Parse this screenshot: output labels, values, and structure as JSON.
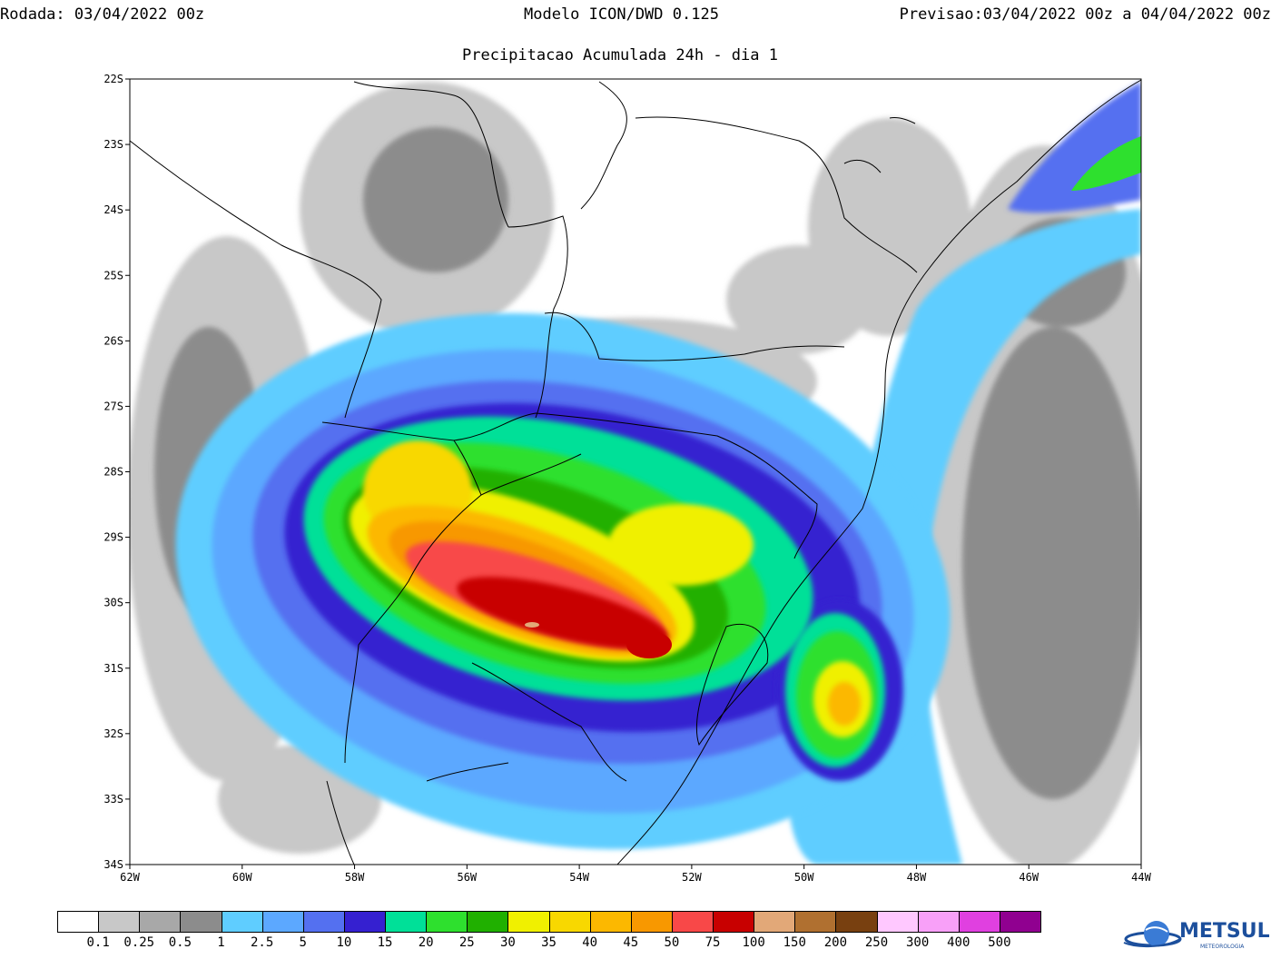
{
  "header": {
    "run": "Rodada: 03/04/2022 00z",
    "model": "Modelo ICON/DWD 0.125",
    "forecast": "Previsao:03/04/2022 00z a 04/04/2022 00z"
  },
  "subtitle": "Precipitacao Acumulada 24h - dia 1",
  "axes": {
    "lat_labels": [
      "22S",
      "23S",
      "24S",
      "25S",
      "26S",
      "27S",
      "28S",
      "29S",
      "30S",
      "31S",
      "32S",
      "33S",
      "34S"
    ],
    "lon_labels": [
      "62W",
      "60W",
      "58W",
      "56W",
      "54W",
      "52W",
      "50W",
      "48W",
      "46W",
      "44W"
    ],
    "lat_range": [
      -34,
      -22
    ],
    "lon_range": [
      -62,
      -44
    ]
  },
  "legend": {
    "labels": [
      "0.1",
      "0.25",
      "0.5",
      "1",
      "2.5",
      "5",
      "10",
      "15",
      "20",
      "25",
      "30",
      "35",
      "40",
      "45",
      "50",
      "75",
      "100",
      "150",
      "200",
      "250",
      "300",
      "400",
      "500"
    ],
    "colors": [
      "#ffffff",
      "#c8c8c8",
      "#a8a8a8",
      "#8c8c8c",
      "#5fcdff",
      "#5ca8ff",
      "#5470f0",
      "#3520d0",
      "#00e098",
      "#2ee02e",
      "#20b000",
      "#f0f000",
      "#f8d800",
      "#fcb800",
      "#f89800",
      "#f84848",
      "#c80000",
      "#e2a878",
      "#b07030",
      "#784010",
      "#ffc8ff",
      "#f8a0f8",
      "#e040e0",
      "#900090"
    ]
  },
  "logo": {
    "name": "METSUL",
    "tagline": "METEOROLOGIA"
  }
}
